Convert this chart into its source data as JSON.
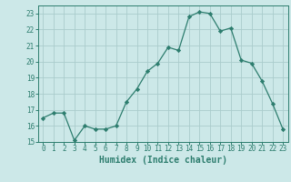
{
  "x": [
    0,
    1,
    2,
    3,
    4,
    5,
    6,
    7,
    8,
    9,
    10,
    11,
    12,
    13,
    14,
    15,
    16,
    17,
    18,
    19,
    20,
    21,
    22,
    23
  ],
  "y": [
    16.5,
    16.8,
    16.8,
    15.1,
    16.0,
    15.8,
    15.8,
    16.0,
    17.5,
    18.3,
    19.4,
    19.9,
    20.9,
    20.7,
    22.8,
    23.1,
    23.0,
    21.9,
    22.1,
    20.1,
    19.9,
    18.8,
    17.4,
    15.8
  ],
  "line_color": "#2d7d6e",
  "marker": "D",
  "marker_size": 2.2,
  "bg_color": "#cce8e8",
  "grid_color": "#aacccc",
  "xlabel": "Humidex (Indice chaleur)",
  "ylim": [
    15,
    23.5
  ],
  "xlim": [
    -0.5,
    23.5
  ],
  "yticks": [
    15,
    16,
    17,
    18,
    19,
    20,
    21,
    22,
    23
  ],
  "xticks": [
    0,
    1,
    2,
    3,
    4,
    5,
    6,
    7,
    8,
    9,
    10,
    11,
    12,
    13,
    14,
    15,
    16,
    17,
    18,
    19,
    20,
    21,
    22,
    23
  ],
  "tick_fontsize": 5.5,
  "label_fontsize": 7.0
}
